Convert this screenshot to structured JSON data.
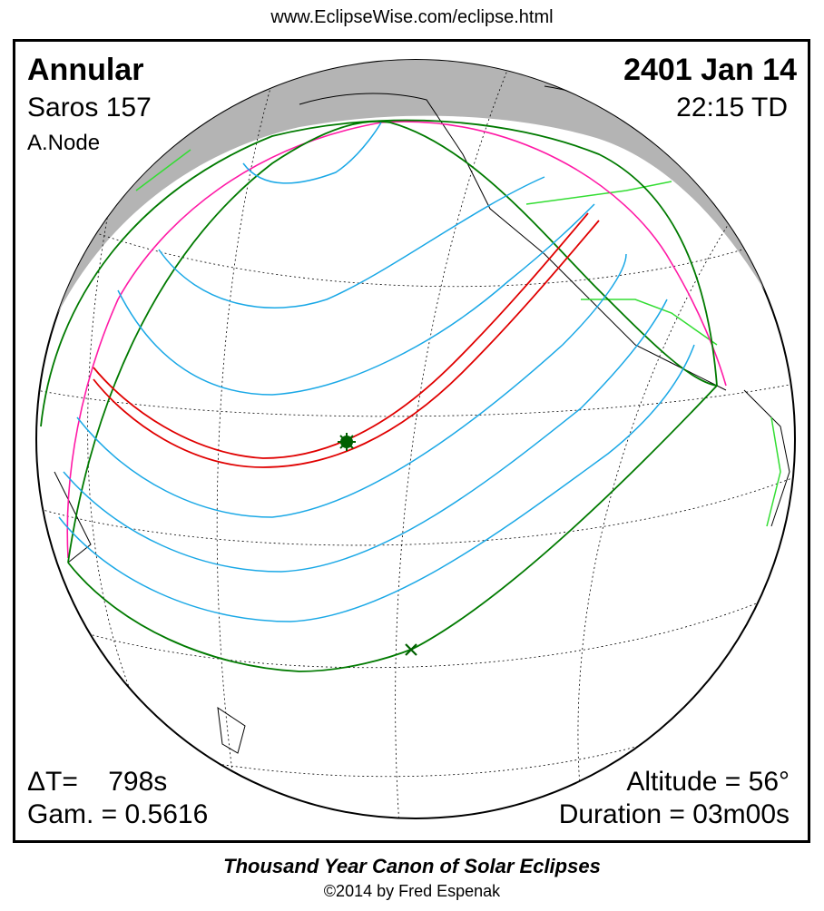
{
  "header": {
    "url": "www.EclipseWise.com/eclipse.html"
  },
  "info": {
    "type": "Annular",
    "date": "2401 Jan 14",
    "saros": "Saros 157",
    "time": "22:15 TD",
    "node": "A.Node",
    "delta_t": "ΔT=    798s",
    "gamma": "Gam. = 0.5616",
    "altitude": "Altitude = 56°",
    "duration": "Duration = 03m00s"
  },
  "footer": {
    "title": "Thousand Year Canon of Solar Eclipses",
    "copyright": "©2014 by Fred Espenak"
  },
  "colors": {
    "central_path": "#e00000",
    "penumbral_limits": "#007a00",
    "rise_set_curve": "#ff00aa",
    "magnitude_lines": "#00a0e0",
    "night": "#b0b0b0",
    "borders": "#00dd00"
  },
  "markers": {
    "greatest_eclipse": "star-icon",
    "greatest_duration": "x-icon"
  }
}
